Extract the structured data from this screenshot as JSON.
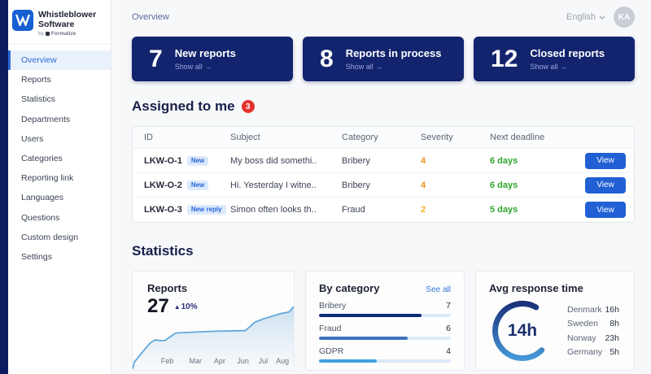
{
  "theme": {
    "navy": "#13246e",
    "strip_navy": "#0d1c60",
    "accent_blue": "#2160d4",
    "active_nav_blue": "#2e6bd6",
    "green": "#2ea52c",
    "red": "#e5322e",
    "orange": "#ef8f1f",
    "yellow": "#f3b51f",
    "line_blue": "#62a8dc"
  },
  "icons": {
    "arrow_right": "→",
    "triangle_up": "▲"
  },
  "sidebar": {
    "logo": {
      "line1": "Whistleblower",
      "line2": "Software",
      "byline_prefix": "by",
      "brand": "Formalize"
    },
    "items": [
      {
        "label": "Overview",
        "active": true
      },
      {
        "label": "Reports",
        "active": false
      },
      {
        "label": "Statistics",
        "active": false
      },
      {
        "label": "Departments",
        "active": false
      },
      {
        "label": "Users",
        "active": false
      },
      {
        "label": "Categories",
        "active": false
      },
      {
        "label": "Reporting link",
        "active": false
      },
      {
        "label": "Languages",
        "active": false
      },
      {
        "label": "Questions",
        "active": false
      },
      {
        "label": "Custom design",
        "active": false
      },
      {
        "label": "Settings",
        "active": false
      }
    ]
  },
  "topbar": {
    "breadcrumb": "Overview",
    "language": "English",
    "avatar_initials": "KA"
  },
  "stat_cards": [
    {
      "value": "7",
      "label": "New reports",
      "link": "Show all"
    },
    {
      "value": "8",
      "label": "Reports in process",
      "link": "Show all"
    },
    {
      "value": "12",
      "label": "Closed reports",
      "link": "Show all"
    }
  ],
  "assigned": {
    "title": "Assigned to me",
    "badge_count": "3",
    "table": {
      "columns": [
        "ID",
        "Subject",
        "Category",
        "Severity",
        "Next deadline"
      ],
      "rows": [
        {
          "id": "LKW-O-1",
          "badge": "New",
          "subject": "My boss did somethi..",
          "category": "Bribery",
          "severity": "4",
          "severity_color": "#ef8f1f",
          "deadline": "6 days",
          "view_label": "View"
        },
        {
          "id": "LKW-O-2",
          "badge": "New",
          "subject": "Hi. Yesterday I witne..",
          "category": "Bribery",
          "severity": "4",
          "severity_color": "#ef8f1f",
          "deadline": "6 days",
          "view_label": "View"
        },
        {
          "id": "LKW-O-3",
          "badge": "New reply",
          "subject": "Simon often looks th..",
          "category": "Fraud",
          "severity": "2",
          "severity_color": "#f3b51f",
          "deadline": "5 days",
          "view_label": "View"
        }
      ]
    }
  },
  "statistics_title": "Statistics",
  "chart_data": [
    {
      "id": "reports-trend",
      "type": "area",
      "title": "Reports",
      "current_value": "27",
      "trend_pct": "10%",
      "trend_direction": "up",
      "x_labels": [
        "Feb",
        "Mar",
        "Apr",
        "Jun",
        "Jul",
        "Aug"
      ],
      "label_positions_pct": [
        21.5,
        39,
        54,
        68.5,
        81,
        93
      ],
      "points_pct": [
        [
          0,
          0
        ],
        [
          1,
          10
        ],
        [
          8,
          28
        ],
        [
          11,
          35
        ],
        [
          14,
          39
        ],
        [
          17,
          38
        ],
        [
          20,
          38
        ],
        [
          26,
          47
        ],
        [
          28,
          48
        ],
        [
          49,
          50
        ],
        [
          70,
          51
        ],
        [
          76,
          62
        ],
        [
          81,
          66
        ],
        [
          92,
          73
        ],
        [
          97,
          75
        ],
        [
          100,
          82
        ]
      ],
      "line_color": "#62a8dc"
    },
    {
      "id": "by-category",
      "type": "bar",
      "title": "By category",
      "link": "See all",
      "categories": [
        "Bribery",
        "Fraud",
        "GDPR"
      ],
      "values": [
        7,
        6,
        4
      ],
      "bars": [
        {
          "label": "Bribery",
          "value": "7",
          "pct": 78,
          "color": "#0e2a75"
        },
        {
          "label": "Fraud",
          "value": "6",
          "pct": 67,
          "color": "#3e72bc"
        },
        {
          "label": "GDPR",
          "value": "4",
          "pct": 44,
          "color": "#3fa0dc"
        }
      ]
    },
    {
      "id": "avg-response",
      "type": "gauge",
      "title": "Avg response time",
      "center_label": "14h",
      "gradient": [
        "#16266f",
        "#4aa2e2"
      ],
      "items": [
        {
          "label": "Denmark",
          "value": "16h"
        },
        {
          "label": "Sweden",
          "value": "8h"
        },
        {
          "label": "Norway",
          "value": "23h"
        },
        {
          "label": "Germany",
          "value": "5h"
        }
      ]
    }
  ]
}
